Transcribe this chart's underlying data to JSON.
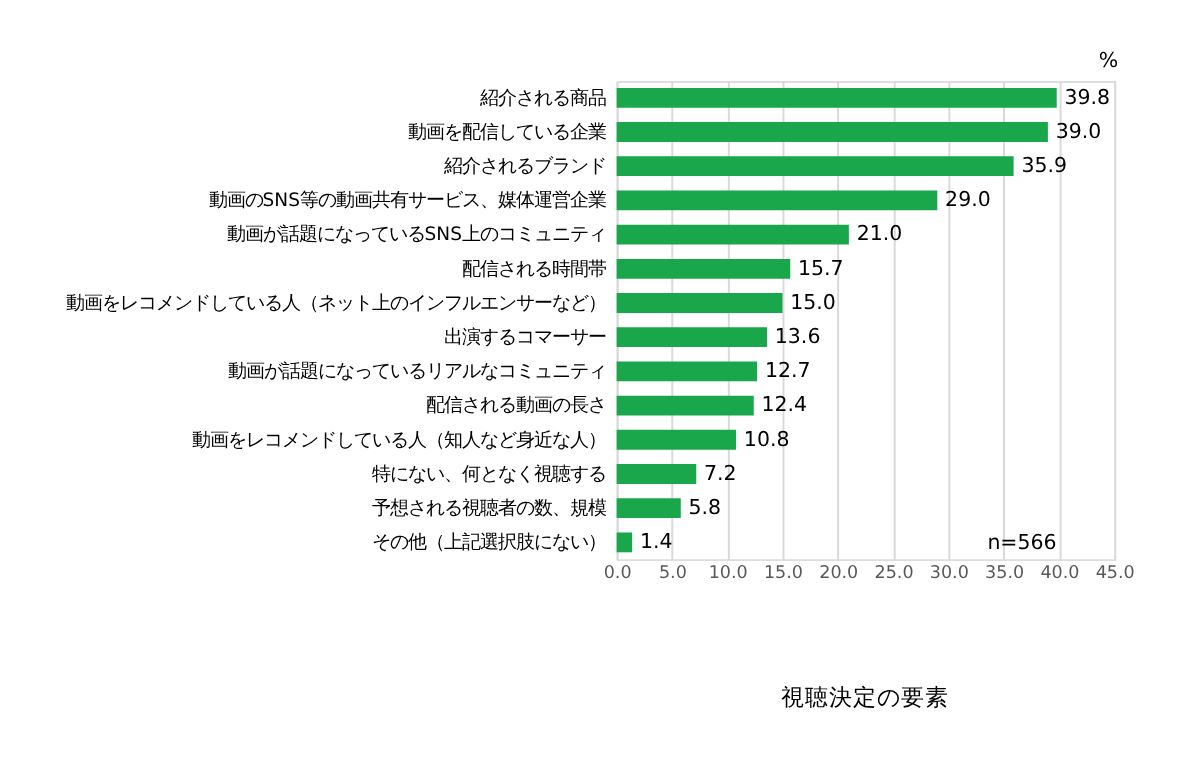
{
  "chart_data": {
    "type": "bar",
    "orientation": "horizontal",
    "title": "視聴決定の要素",
    "categories": [
      "紹介される商品",
      "動画を配信している企業",
      "紹介されるブランド",
      "動画のSNS等の動画共有サービス、媒体運営企業",
      "動画が話題になっているSNS上のコミュニティ",
      "配信される時間帯",
      "動画をレコメンドしている人（ネット上のインフルエンサーなど）",
      "出演するコマーサー",
      "動画が話題になっているリアルなコミュニティ",
      "配信される動画の長さ",
      "動画をレコメンドしている人（知人など身近な人）",
      "特にない、何となく視聴する",
      "予想される視聴者の数、規模",
      "その他（上記選択肢にない）"
    ],
    "values": [
      39.8,
      39.0,
      35.9,
      29.0,
      21.0,
      15.7,
      15.0,
      13.6,
      12.7,
      12.4,
      10.8,
      7.2,
      5.8,
      1.4
    ],
    "color": "#1aa64a",
    "xlim": [
      0,
      45
    ],
    "xticks": [
      {
        "value": 0,
        "label": "0.0"
      },
      {
        "value": 5,
        "label": "5.0"
      },
      {
        "value": 10,
        "label": "10.0"
      },
      {
        "value": 15,
        "label": "15.0"
      },
      {
        "value": 20,
        "label": "20.0"
      },
      {
        "value": 25,
        "label": "25.0"
      },
      {
        "value": 30,
        "label": "30.0"
      },
      {
        "value": 35,
        "label": "35.0"
      },
      {
        "value": 40,
        "label": "40.0"
      },
      {
        "value": 45,
        "label": "45.0"
      }
    ],
    "grid": "x",
    "data_labels": true,
    "value_labels": [
      "39.8",
      "39.0",
      "35.9",
      "29.0",
      "21.0",
      "15.7",
      "15.0",
      "13.6",
      "12.7",
      "12.4",
      "10.8",
      "7.2",
      "5.8",
      "1.4"
    ],
    "annotations": [
      "%",
      "n=566"
    ]
  }
}
